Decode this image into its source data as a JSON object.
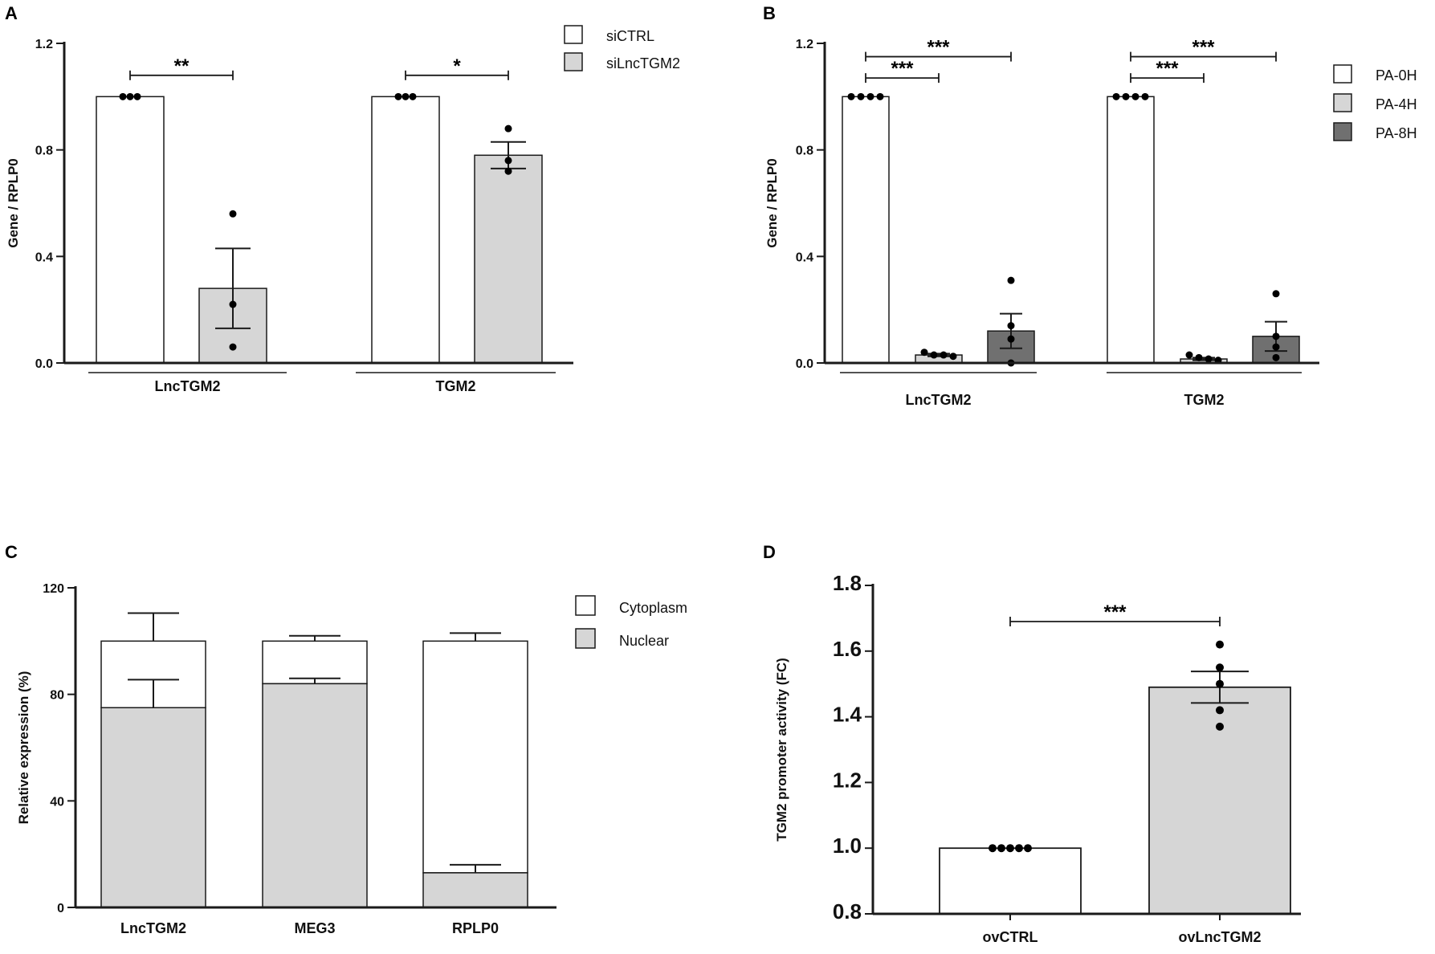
{
  "colors": {
    "white": "#ffffff",
    "light": "#d6d6d6",
    "dark": "#707070",
    "ink": "#1a1a1a"
  },
  "chart_data": [
    {
      "panel": "A",
      "type": "bar",
      "ylabel": "Gene / RPLP0",
      "ylim": [
        0,
        1.2
      ],
      "yticks": [
        0.0,
        0.4,
        0.8,
        1.2
      ],
      "yticklabels": [
        "0.0",
        "0.4",
        "0.8",
        "1.2"
      ],
      "categories": [
        "LncTGM2",
        "TGM2"
      ],
      "series": [
        {
          "name": "siCTRL",
          "color": "#ffffff",
          "values": [
            1.0,
            1.0
          ],
          "errors": [
            0,
            0
          ],
          "points": [
            [
              1,
              1,
              1
            ],
            [
              1,
              1,
              1
            ]
          ]
        },
        {
          "name": "siLncTGM2",
          "color": "#d6d6d6",
          "values": [
            0.28,
            0.78
          ],
          "errors": [
            0.15,
            0.05
          ],
          "points": [
            [
              0.56,
              0.22,
              0.06
            ],
            [
              0.88,
              0.76,
              0.72
            ]
          ]
        }
      ],
      "significance": [
        {
          "category": 0,
          "from": 0,
          "to": 1,
          "label": "**",
          "y": 1.08
        },
        {
          "category": 1,
          "from": 0,
          "to": 1,
          "label": "*",
          "y": 1.08
        }
      ],
      "legend_position": "top-right"
    },
    {
      "panel": "B",
      "type": "bar",
      "ylabel": "Gene / RPLP0",
      "ylim": [
        0,
        1.2
      ],
      "yticks": [
        0.0,
        0.4,
        0.8,
        1.2
      ],
      "yticklabels": [
        "0.0",
        "0.4",
        "0.8",
        "1.2"
      ],
      "categories": [
        "LncTGM2",
        "TGM2"
      ],
      "series": [
        {
          "name": "PA-0H",
          "color": "#ffffff",
          "values": [
            1.0,
            1.0
          ],
          "errors": [
            0,
            0
          ],
          "points": [
            [
              1,
              1,
              1,
              1
            ],
            [
              1,
              1,
              1,
              1
            ]
          ]
        },
        {
          "name": "PA-4H",
          "color": "#d6d6d6",
          "values": [
            0.03,
            0.015
          ],
          "errors": [
            0.005,
            0.005
          ],
          "points": [
            [
              0.04,
              0.03,
              0.03,
              0.025
            ],
            [
              0.03,
              0.02,
              0.015,
              0.01
            ]
          ]
        },
        {
          "name": "PA-8H",
          "color": "#707070",
          "values": [
            0.12,
            0.1
          ],
          "errors": [
            0.065,
            0.055
          ],
          "points": [
            [
              0.31,
              0.14,
              0.09,
              0.0
            ],
            [
              0.26,
              0.1,
              0.06,
              0.02
            ]
          ]
        }
      ],
      "significance": [
        {
          "category": 0,
          "from": 0,
          "to": 1,
          "label": "***",
          "y": 1.07
        },
        {
          "category": 0,
          "from": 0,
          "to": 2,
          "label": "***",
          "y": 1.15
        },
        {
          "category": 1,
          "from": 0,
          "to": 1,
          "label": "***",
          "y": 1.07
        },
        {
          "category": 1,
          "from": 0,
          "to": 2,
          "label": "***",
          "y": 1.15
        }
      ],
      "legend_position": "right"
    },
    {
      "panel": "C",
      "type": "bar",
      "stacked": true,
      "ylabel": "Relative expression (%)",
      "ylim": [
        0,
        120
      ],
      "yticks": [
        0,
        40,
        80,
        120
      ],
      "yticklabels": [
        "0",
        "40",
        "80",
        "120"
      ],
      "categories": [
        "LncTGM2",
        "MEG3",
        "RPLP0"
      ],
      "series": [
        {
          "name": "Nuclear",
          "color": "#d6d6d6",
          "values": [
            75,
            84,
            13
          ],
          "errors": [
            10.5,
            2,
            3
          ]
        },
        {
          "name": "Cytoplasm",
          "color": "#ffffff",
          "values": [
            25,
            16,
            87
          ],
          "errors": [
            10.5,
            2,
            3
          ]
        }
      ],
      "legend_order": [
        "Cytoplasm",
        "Nuclear"
      ],
      "legend_position": "top-right"
    },
    {
      "panel": "D",
      "type": "bar",
      "ylabel": "TGM2 promoter activity (FC)",
      "ylim": [
        0.8,
        1.8
      ],
      "yticks": [
        0.8,
        1.0,
        1.2,
        1.4,
        1.6,
        1.8
      ],
      "yticklabels": [
        "0.8",
        "1.0",
        "1.2",
        "1.4",
        "1.6",
        "1.8"
      ],
      "categories": [
        "ovCTRL",
        "ovLncTGM2"
      ],
      "values": [
        1.0,
        1.49
      ],
      "errors": [
        0,
        0.048
      ],
      "colors": [
        "#ffffff",
        "#d6d6d6"
      ],
      "points": [
        [
          1,
          1,
          1,
          1,
          1
        ],
        [
          1.62,
          1.55,
          1.5,
          1.42,
          1.37
        ]
      ],
      "significance": [
        {
          "from": 0,
          "to": 1,
          "label": "***",
          "y": 1.69
        }
      ]
    }
  ]
}
